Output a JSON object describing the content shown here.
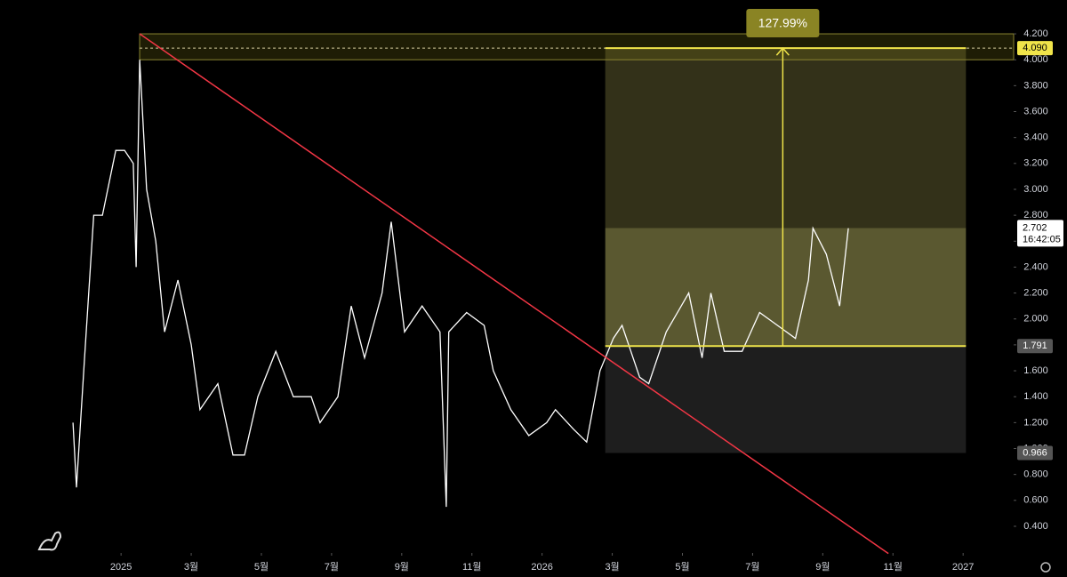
{
  "chart_data": {
    "type": "line",
    "color": "#ffffff",
    "x": [
      -1.37,
      -1.27,
      -1.04,
      -0.78,
      -0.53,
      -0.15,
      0.1,
      0.35,
      0.43,
      0.53,
      0.73,
      0.99,
      1.24,
      1.62,
      2.0,
      2.25,
      2.76,
      3.19,
      3.52,
      3.9,
      4.41,
      4.91,
      5.42,
      5.67,
      6.18,
      6.56,
      6.94,
      7.44,
      7.7,
      8.08,
      8.58,
      9.09,
      9.27,
      9.34,
      9.85,
      10.35,
      10.61,
      11.11,
      11.62,
      12.13,
      12.38,
      12.89,
      13.27,
      13.65,
      14.03,
      14.28,
      14.78,
      15.04,
      15.54,
      16.18,
      16.56,
      16.81,
      17.19,
      17.7,
      18.2,
      18.71,
      19.22,
      19.59,
      19.72,
      20.1,
      20.48,
      20.73
    ],
    "values": [
      1.2,
      0.7,
      1.7,
      2.8,
      2.8,
      3.3,
      3.3,
      3.2,
      2.4,
      4.0,
      3.0,
      2.6,
      1.9,
      2.3,
      1.8,
      1.3,
      1.5,
      0.95,
      0.95,
      1.4,
      1.75,
      1.4,
      1.4,
      1.2,
      1.4,
      2.1,
      1.7,
      2.2,
      2.75,
      1.9,
      2.1,
      1.9,
      0.55,
      1.9,
      2.05,
      1.95,
      1.6,
      1.3,
      1.1,
      1.2,
      1.3,
      1.15,
      1.05,
      1.6,
      1.85,
      1.95,
      1.55,
      1.5,
      1.9,
      2.2,
      1.7,
      2.2,
      1.75,
      1.75,
      2.05,
      1.95,
      1.85,
      2.3,
      2.7,
      2.5,
      2.1,
      2.7
    ],
    "xlim": [
      -3.45,
      25.44
    ],
    "ylim": [
      0.194,
      4.461
    ],
    "xticks": [
      {
        "value": 0,
        "label": "2025"
      },
      {
        "value": 2,
        "label": "3월"
      },
      {
        "value": 4,
        "label": "5월"
      },
      {
        "value": 6,
        "label": "7월"
      },
      {
        "value": 8,
        "label": "9월"
      },
      {
        "value": 10,
        "label": "11월"
      },
      {
        "value": 12,
        "label": "2026"
      },
      {
        "value": 14,
        "label": "3월"
      },
      {
        "value": 16,
        "label": "5월"
      },
      {
        "value": 18,
        "label": "7월"
      },
      {
        "value": 20,
        "label": "9월"
      },
      {
        "value": 22,
        "label": "11월"
      },
      {
        "value": 24,
        "label": "2027"
      }
    ],
    "yticks": [
      {
        "value": 0.4,
        "label": "0.400"
      },
      {
        "value": 0.6,
        "label": "0.600"
      },
      {
        "value": 0.8,
        "label": "0.800"
      },
      {
        "value": 1.0,
        "label": "1.000"
      },
      {
        "value": 1.2,
        "label": "1.200"
      },
      {
        "value": 1.4,
        "label": "1.400"
      },
      {
        "value": 1.6,
        "label": "1.600"
      },
      {
        "value": 1.8,
        "label": "1.800"
      },
      {
        "value": 2.0,
        "label": "2.000"
      },
      {
        "value": 2.2,
        "label": "2.200"
      },
      {
        "value": 2.4,
        "label": "2.400"
      },
      {
        "value": 2.6,
        "label": "2.600"
      },
      {
        "value": 2.8,
        "label": "2.800"
      },
      {
        "value": 3.0,
        "label": "3.000"
      },
      {
        "value": 3.2,
        "label": "3.200"
      },
      {
        "value": 3.4,
        "label": "3.400"
      },
      {
        "value": 3.6,
        "label": "3.600"
      },
      {
        "value": 3.8,
        "label": "3.800"
      },
      {
        "value": 4.0,
        "label": "4.000"
      },
      {
        "value": 4.2,
        "label": "4.200"
      }
    ],
    "trendline": {
      "color": "#f23645",
      "x": [
        0.53,
        21.87
      ],
      "values": [
        4.2,
        0.19
      ]
    },
    "target_zone": {
      "x_start": 0.53,
      "ylim": [
        4.0,
        4.2
      ]
    },
    "measure": {
      "xlim": [
        13.8,
        24.08
      ],
      "entry": 1.791,
      "target": 4.09,
      "stop": 0.966,
      "current": 2.702,
      "arrow_x": 18.86,
      "label": "127.99%"
    },
    "price_tags": [
      {
        "value": 4.09,
        "label": "4.090"
      },
      {
        "value": 1.791,
        "label": "1.791"
      },
      {
        "value": 0.966,
        "label": "0.966"
      }
    ],
    "last_price": {
      "value": 2.702,
      "label": "2.702",
      "time": "16:42:05"
    }
  }
}
